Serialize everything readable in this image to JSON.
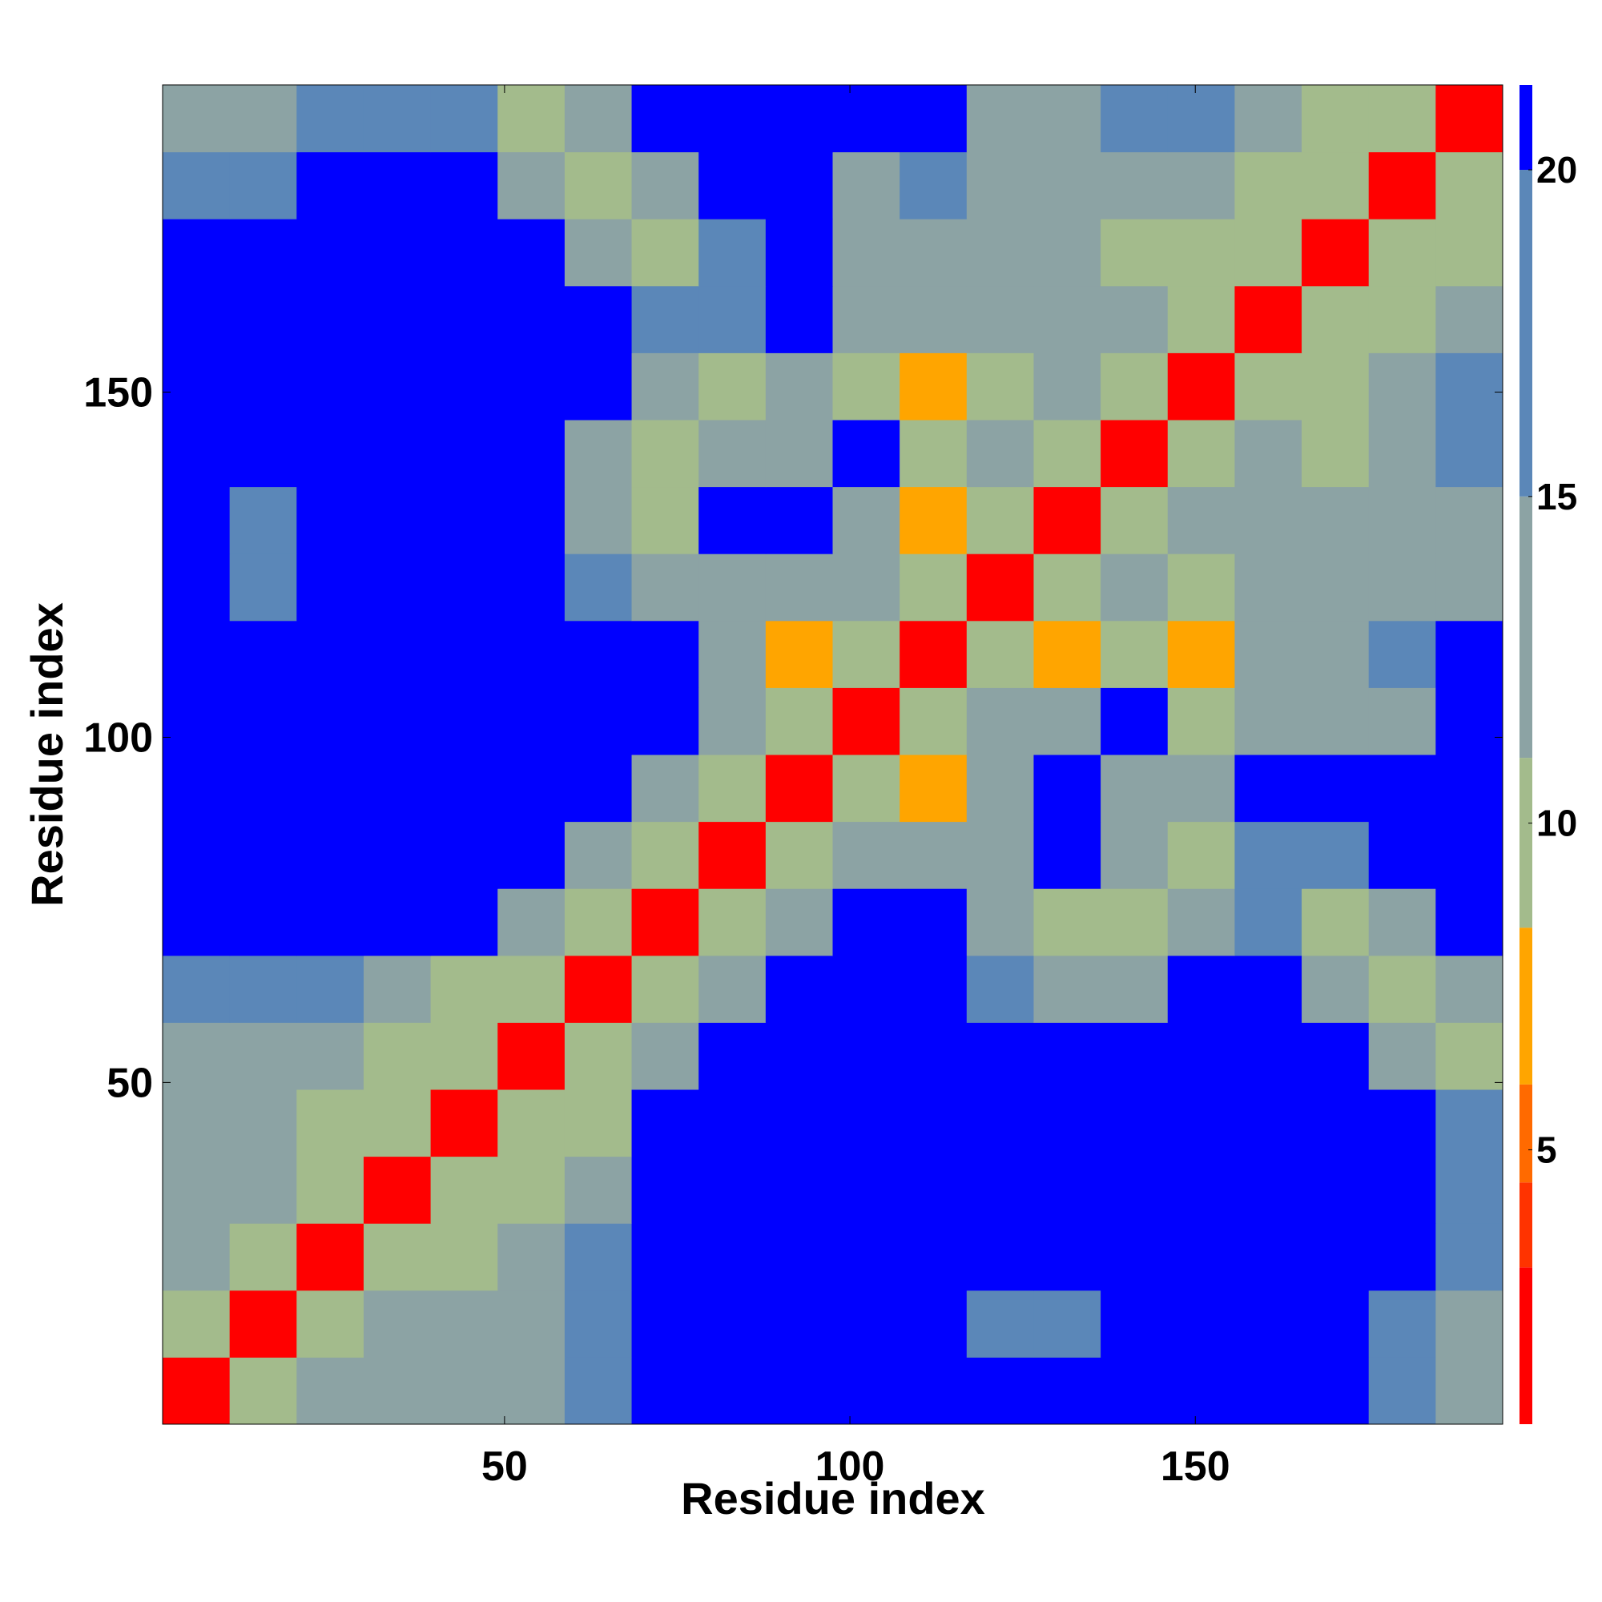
{
  "chart_data": {
    "type": "heatmap",
    "xlabel": "Residue index",
    "ylabel": "Residue index",
    "xlim": [
      0.5,
      194.5
    ],
    "ylim": [
      0.5,
      194.5
    ],
    "xticks": [
      50,
      100,
      150
    ],
    "yticks": [
      50,
      100,
      150
    ],
    "zlim": [
      0.8,
      21.3
    ],
    "zticks": [
      5,
      10,
      15,
      20
    ],
    "colorscale": [
      {
        "max": 3.2,
        "color": "#ff0000"
      },
      {
        "max": 4.5,
        "color": "#ff3300"
      },
      {
        "max": 6,
        "color": "#ff6a00"
      },
      {
        "max": 8.4,
        "color": "#ffa500"
      },
      {
        "max": 11,
        "color": "#a3bb8c"
      },
      {
        "max": 15,
        "color": "#8ca3a4"
      },
      {
        "max": 20,
        "color": "#5b87b8"
      },
      {
        "max": 21.3,
        "color": "#0000ff"
      }
    ],
    "z": [
      [
        3,
        9,
        13,
        14,
        13,
        15,
        18,
        21,
        21,
        21,
        21,
        21,
        21,
        21,
        21,
        21,
        21,
        21,
        16,
        15
      ],
      [
        9,
        3,
        9,
        13,
        12,
        14,
        17,
        21,
        21,
        21,
        21,
        21,
        19,
        18,
        21,
        21,
        21,
        21,
        17,
        12
      ],
      [
        13,
        9,
        3,
        9,
        11,
        14,
        17,
        21,
        21,
        21,
        21,
        21,
        21,
        21,
        21,
        21,
        21,
        21,
        21,
        17
      ],
      [
        14,
        13,
        9,
        3,
        9,
        11,
        14,
        21,
        21,
        21,
        21,
        21,
        21,
        21,
        21,
        21,
        21,
        21,
        21,
        17
      ],
      [
        13,
        12,
        11,
        9,
        3,
        9,
        11,
        21,
        21,
        21,
        21,
        21,
        21,
        21,
        21,
        21,
        21,
        21,
        21,
        16
      ],
      [
        15,
        14,
        14,
        11,
        9,
        3,
        9,
        15,
        21,
        21,
        21,
        21,
        21,
        21,
        21,
        21,
        21,
        21,
        15,
        9
      ],
      [
        18,
        17,
        17,
        14,
        11,
        9,
        3,
        9,
        15,
        21,
        21,
        21,
        16,
        13,
        12,
        21,
        21,
        13,
        9,
        14
      ],
      [
        21,
        21,
        21,
        21,
        21,
        15,
        9,
        3,
        9,
        15,
        21,
        21,
        14,
        9,
        11,
        15,
        16,
        9,
        13,
        21
      ],
      [
        21,
        21,
        21,
        21,
        21,
        21,
        15,
        9,
        3,
        9,
        15,
        12,
        14,
        21,
        12,
        10,
        19,
        16,
        21,
        21
      ],
      [
        21,
        21,
        21,
        21,
        21,
        21,
        21,
        15,
        9,
        3,
        9,
        8,
        13,
        21,
        13,
        14,
        21,
        21,
        21,
        21
      ],
      [
        21,
        21,
        21,
        21,
        21,
        21,
        21,
        21,
        15,
        9,
        3,
        9,
        12,
        13,
        21,
        10,
        14,
        15,
        15,
        21
      ],
      [
        21,
        21,
        21,
        21,
        21,
        21,
        21,
        21,
        12,
        8,
        9,
        3,
        9,
        8,
        9,
        8,
        13,
        15,
        16,
        21
      ],
      [
        21,
        19,
        21,
        21,
        21,
        21,
        16,
        14,
        14,
        13,
        12,
        9,
        3,
        9,
        12,
        10,
        14,
        14,
        15,
        15
      ],
      [
        21,
        18,
        21,
        21,
        21,
        21,
        13,
        9,
        21,
        21,
        13,
        8,
        9,
        3,
        9,
        13,
        14,
        13,
        14,
        15
      ],
      [
        21,
        21,
        21,
        21,
        21,
        21,
        12,
        11,
        12,
        13,
        21,
        9,
        12,
        9,
        3,
        9,
        12,
        11,
        13,
        16
      ],
      [
        21,
        21,
        21,
        21,
        21,
        21,
        21,
        15,
        10,
        14,
        10,
        8,
        10,
        13,
        9,
        3,
        9,
        9,
        12,
        16
      ],
      [
        21,
        21,
        21,
        21,
        21,
        21,
        21,
        16,
        19,
        21,
        14,
        13,
        14,
        14,
        12,
        9,
        3,
        9,
        9,
        15
      ],
      [
        21,
        21,
        21,
        21,
        21,
        21,
        13,
        9,
        16,
        21,
        15,
        15,
        14,
        13,
        11,
        9,
        9,
        3,
        9,
        9
      ],
      [
        16,
        17,
        21,
        21,
        21,
        15,
        9,
        13,
        21,
        21,
        15,
        16,
        15,
        14,
        13,
        12,
        9,
        9,
        3,
        9
      ],
      [
        15,
        12,
        17,
        17,
        16,
        9,
        14,
        21,
        21,
        21,
        21,
        21,
        15,
        15,
        16,
        16,
        15,
        9,
        9,
        3
      ]
    ]
  }
}
